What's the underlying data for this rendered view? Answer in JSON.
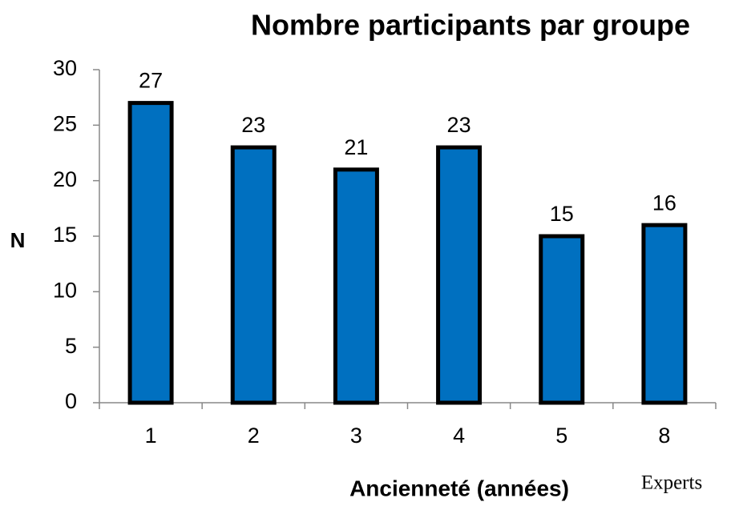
{
  "chart_data": {
    "type": "bar",
    "title": "Nombre participants par groupe",
    "x_label": "Ancienneté (années)",
    "y_label": "N",
    "annotation": "Experts",
    "categories": [
      "1",
      "2",
      "3",
      "4",
      "5",
      "8"
    ],
    "values": [
      27,
      23,
      21,
      23,
      15,
      16
    ],
    "color": "#0070c0",
    "ylim": [
      0,
      30
    ],
    "yticks": [
      0,
      5,
      10,
      15,
      20,
      25,
      30
    ],
    "grid": false
  }
}
